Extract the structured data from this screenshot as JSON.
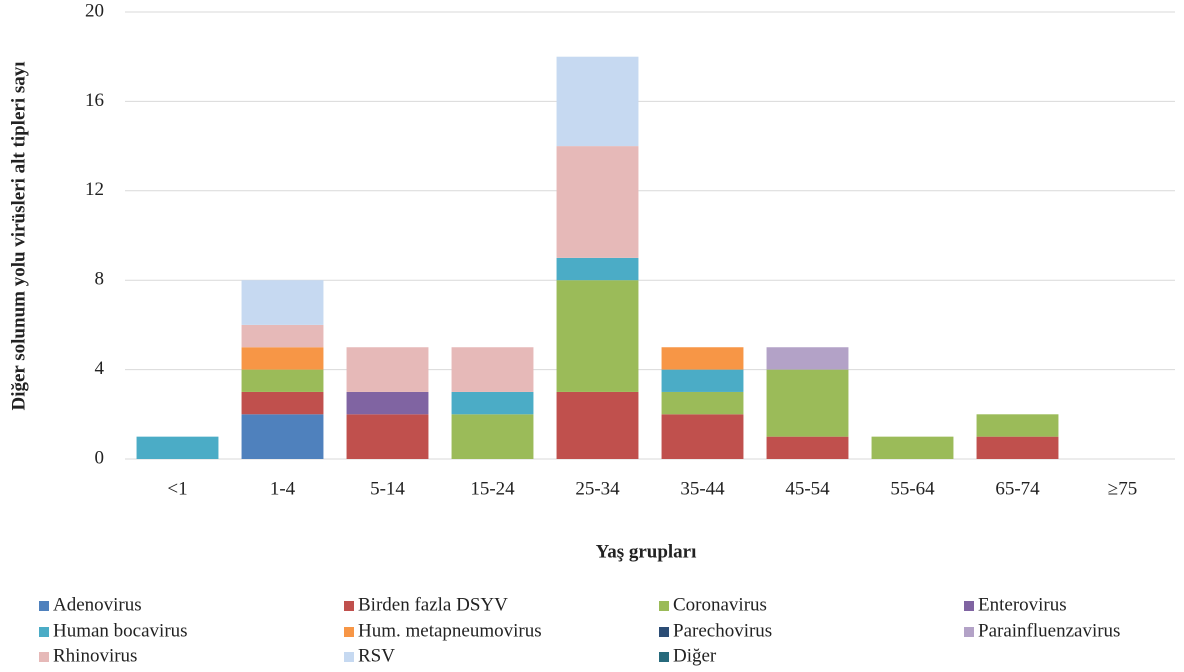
{
  "chart_data": {
    "type": "stacked_bar",
    "x_label": "Yaş grupları",
    "y_label": "Diğer solunum yolu virüsleri alt tipleri sayı",
    "categories": [
      "<1",
      "1-4",
      "5-14",
      "15-24",
      "25-34",
      "35-44",
      "45-54",
      "55-64",
      "65-74",
      "≥75"
    ],
    "series": [
      {
        "name": "Adenovirus",
        "color": "#4f81bd",
        "values": [
          0,
          2,
          0,
          0,
          0,
          0,
          0,
          0,
          0,
          0
        ]
      },
      {
        "name": "Birden fazla DSYV",
        "color": "#c0504d",
        "values": [
          0,
          1,
          2,
          0,
          3,
          2,
          1,
          0,
          1,
          0
        ]
      },
      {
        "name": "Coronavirus",
        "color": "#9bbb59",
        "values": [
          0,
          1,
          0,
          2,
          5,
          1,
          3,
          1,
          1,
          0
        ]
      },
      {
        "name": "Enterovirus",
        "color": "#8064a2",
        "values": [
          0,
          0,
          1,
          0,
          0,
          0,
          0,
          0,
          0,
          0
        ]
      },
      {
        "name": "Human bocavirus",
        "color": "#4bacc6",
        "values": [
          1,
          0,
          0,
          1,
          1,
          1,
          0,
          0,
          0,
          0
        ]
      },
      {
        "name": "Hum. metapneumovirus",
        "color": "#f79646",
        "values": [
          0,
          1,
          0,
          0,
          0,
          1,
          0,
          0,
          0,
          0
        ]
      },
      {
        "name": "Parechovirus",
        "color": "#2c4d75",
        "values": [
          0,
          0,
          0,
          0,
          0,
          0,
          0,
          0,
          0,
          0
        ]
      },
      {
        "name": "Parainfluenzavirus",
        "color": "#b3a2c7",
        "values": [
          0,
          0,
          0,
          0,
          0,
          0,
          1,
          0,
          0,
          0
        ]
      },
      {
        "name": "Rhinovirus",
        "color": "#e6b9b8",
        "values": [
          0,
          1,
          2,
          2,
          5,
          0,
          0,
          0,
          0,
          0
        ]
      },
      {
        "name": "RSV",
        "color": "#c6d9f1",
        "values": [
          0,
          2,
          0,
          0,
          4,
          0,
          0,
          0,
          0,
          0
        ]
      },
      {
        "name": "Diğer",
        "color": "#276a7c",
        "values": [
          0,
          0,
          0,
          0,
          0,
          0,
          0,
          0,
          0,
          0
        ]
      }
    ],
    "ylim": [
      0,
      20
    ],
    "yticks": [
      0,
      4,
      8,
      12,
      16,
      20
    ],
    "grid": true
  }
}
